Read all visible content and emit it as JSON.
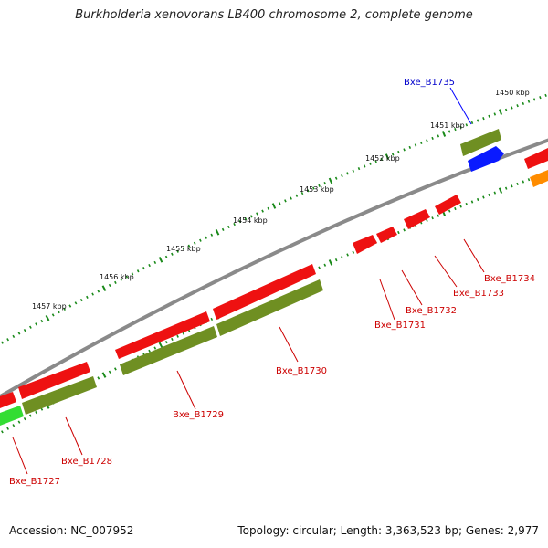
{
  "title": "Burkholderia xenovorans LB400 chromosome 2, complete genome",
  "accession": "Accession: NC_007952",
  "topology": "Topology: circular; Length: 3,363,523 bp; Genes: 2,977",
  "colors": {
    "backbone": "#7a7a7a",
    "forward_cds": "#ff1a1a",
    "reverse_cds": "#e00000",
    "gene_olive": "#7a9a2a",
    "selected_gene": "#0a1aff",
    "orange_gene": "#ff8c00",
    "green_gene": "#33dd33",
    "tick_green": "#1a8a1a",
    "label_red": "#cc0000",
    "label_blue": "#0000cc"
  },
  "scale_labels": [
    "1450 kbp",
    "1451 kbp",
    "1452 kbp",
    "1453 kbp",
    "1454 kbp",
    "1455 kbp",
    "1456 kbp",
    "1457 kbp"
  ],
  "gene_labels": [
    {
      "text": "Bxe_B1735",
      "color": "blue"
    },
    {
      "text": "Bxe_B1734",
      "color": "red"
    },
    {
      "text": "Bxe_B1733",
      "color": "red"
    },
    {
      "text": "Bxe_B1732",
      "color": "red"
    },
    {
      "text": "Bxe_B1731",
      "color": "red"
    },
    {
      "text": "Bxe_B1730",
      "color": "red"
    },
    {
      "text": "Bxe_B1729",
      "color": "red"
    },
    {
      "text": "Bxe_B1728",
      "color": "red"
    },
    {
      "text": "Bxe_B1727",
      "color": "red"
    }
  ]
}
